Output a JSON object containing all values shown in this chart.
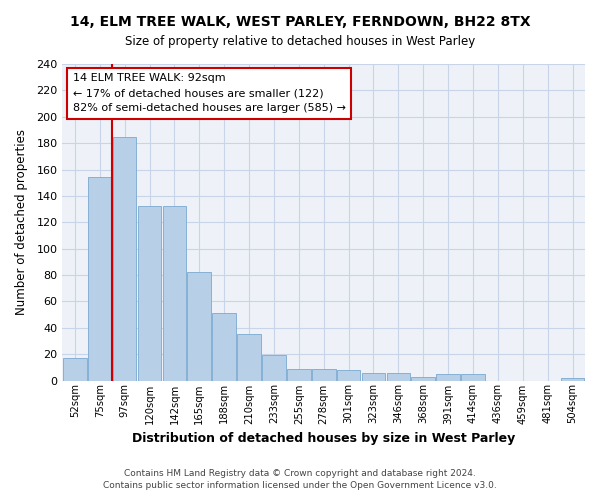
{
  "title1": "14, ELM TREE WALK, WEST PARLEY, FERNDOWN, BH22 8TX",
  "title2": "Size of property relative to detached houses in West Parley",
  "xlabel": "Distribution of detached houses by size in West Parley",
  "ylabel": "Number of detached properties",
  "footer1": "Contains HM Land Registry data © Crown copyright and database right 2024.",
  "footer2": "Contains public sector information licensed under the Open Government Licence v3.0.",
  "bar_color": "#b8cfe8",
  "bar_edge_color": "#7aaad0",
  "plot_bg_color": "#eef2f8",
  "grid_color": "#c8d4e8",
  "annotation_text_line1": "14 ELM TREE WALK: 92sqm",
  "annotation_text_line2": "← 17% of detached houses are smaller (122)",
  "annotation_text_line3": "82% of semi-detached houses are larger (585) →",
  "categories": [
    "52sqm",
    "75sqm",
    "97sqm",
    "120sqm",
    "142sqm",
    "165sqm",
    "188sqm",
    "210sqm",
    "233sqm",
    "255sqm",
    "278sqm",
    "301sqm",
    "323sqm",
    "346sqm",
    "368sqm",
    "391sqm",
    "414sqm",
    "436sqm",
    "459sqm",
    "481sqm",
    "504sqm"
  ],
  "values": [
    17,
    154,
    185,
    132,
    132,
    82,
    51,
    35,
    19,
    9,
    9,
    8,
    6,
    6,
    3,
    5,
    5,
    0,
    0,
    0,
    2
  ],
  "ylim": [
    0,
    240
  ],
  "yticks": [
    0,
    20,
    40,
    60,
    80,
    100,
    120,
    140,
    160,
    180,
    200,
    220,
    240
  ],
  "red_line_bin_index": 2,
  "n_bins": 21,
  "figsize": [
    6.0,
    5.0
  ],
  "dpi": 100
}
